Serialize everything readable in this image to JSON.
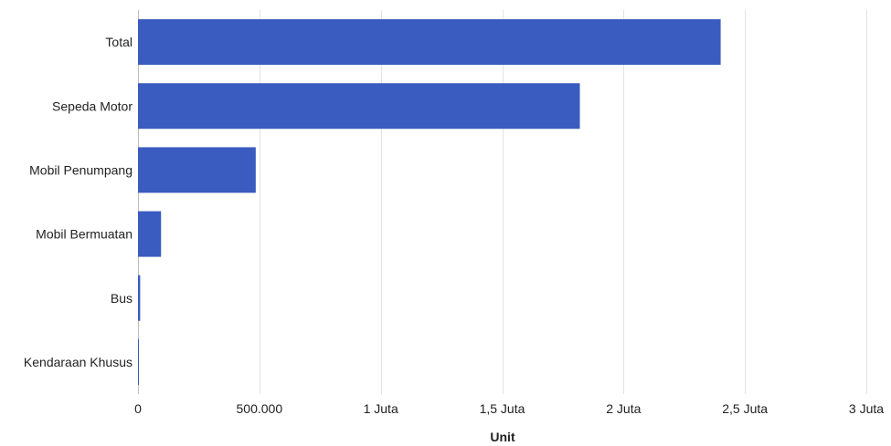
{
  "colors": {
    "bar": "#3a5bbf",
    "grid": "#e3e3e3"
  },
  "chart_data": {
    "type": "bar",
    "orientation": "horizontal",
    "title": "",
    "xlabel": "Unit",
    "ylabel": "",
    "categories": [
      "Total",
      "Sepeda Motor",
      "Mobil Penumpang",
      "Mobil Bermuatan",
      "Bus",
      "Kendaraan Khusus"
    ],
    "values": [
      2400000,
      1820000,
      485000,
      95000,
      9000,
      1500
    ],
    "xlim": [
      0,
      3000000
    ],
    "xticks": [
      0,
      500000,
      1000000,
      1500000,
      2000000,
      2500000,
      3000000
    ],
    "xtick_labels": [
      "0",
      "500.000",
      "1 Juta",
      "1,5 Juta",
      "2 Juta",
      "2,5 Juta",
      "3 Juta"
    ],
    "grid": true,
    "legend": "none"
  }
}
